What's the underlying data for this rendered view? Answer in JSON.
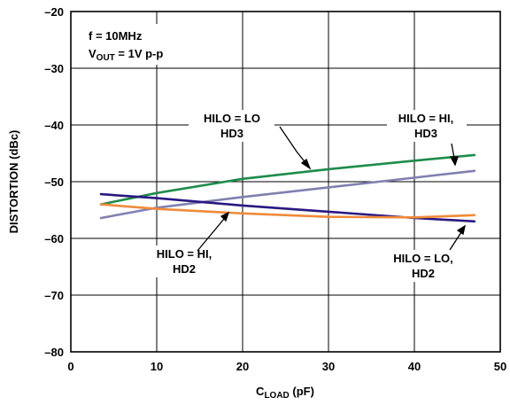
{
  "chart_data": {
    "type": "line",
    "xlabel_main": "C",
    "xlabel_sub": "LOAD",
    "xlabel_unit": " (pF)",
    "ylabel": "DISTORTION (dBc)",
    "xlim": [
      0,
      50
    ],
    "ylim": [
      -80,
      -20
    ],
    "x_ticks": [
      "0",
      "10",
      "20",
      "30",
      "40",
      "50"
    ],
    "y_ticks": [
      "–80",
      "–70",
      "–60",
      "–50",
      "–40",
      "–30",
      "–20"
    ],
    "grid": true,
    "conditions": {
      "line1": "f = 10MHz",
      "line2_main": "V",
      "line2_sub": "OUT",
      "line2_rest": " = 1V p-p"
    },
    "series": [
      {
        "name": "HILO = LO HD3",
        "color": "#1e8c4a",
        "x": [
          3.5,
          10,
          20,
          30,
          40,
          47
        ],
        "y": [
          -54,
          -52,
          -49.5,
          -47.8,
          -46.3,
          -45.3
        ]
      },
      {
        "name": "HILO = HI, HD3",
        "color": "#8080b0",
        "x": [
          3.5,
          10,
          20,
          30,
          40,
          47
        ],
        "y": [
          -56.4,
          -54.6,
          -52.7,
          -51,
          -49.3,
          -48.1
        ]
      },
      {
        "name": "HILO = HI, HD2",
        "color": "#2a1880",
        "x": [
          3.5,
          10,
          20,
          30,
          40,
          47
        ],
        "y": [
          -52.2,
          -52.9,
          -54.2,
          -55.3,
          -56.4,
          -57
        ]
      },
      {
        "name": "HILO = LO, HD2",
        "color": "#f08a3a",
        "x": [
          3.5,
          10,
          20,
          30,
          40,
          47
        ],
        "y": [
          -54,
          -54.8,
          -55.6,
          -56.2,
          -56.3,
          -55.9
        ]
      }
    ],
    "annotations": [
      {
        "lines": [
          "HILO = LO",
          "HD3"
        ],
        "series": "HILO = LO HD3"
      },
      {
        "lines": [
          "HILO = HI,",
          "HD3"
        ],
        "series": "HILO = HI, HD3"
      },
      {
        "lines": [
          "HILO = HI,",
          "HD2"
        ],
        "series": "HILO = HI, HD2"
      },
      {
        "lines": [
          "HILO = LO,",
          "HD2"
        ],
        "series": "HILO = LO, HD2"
      }
    ]
  }
}
